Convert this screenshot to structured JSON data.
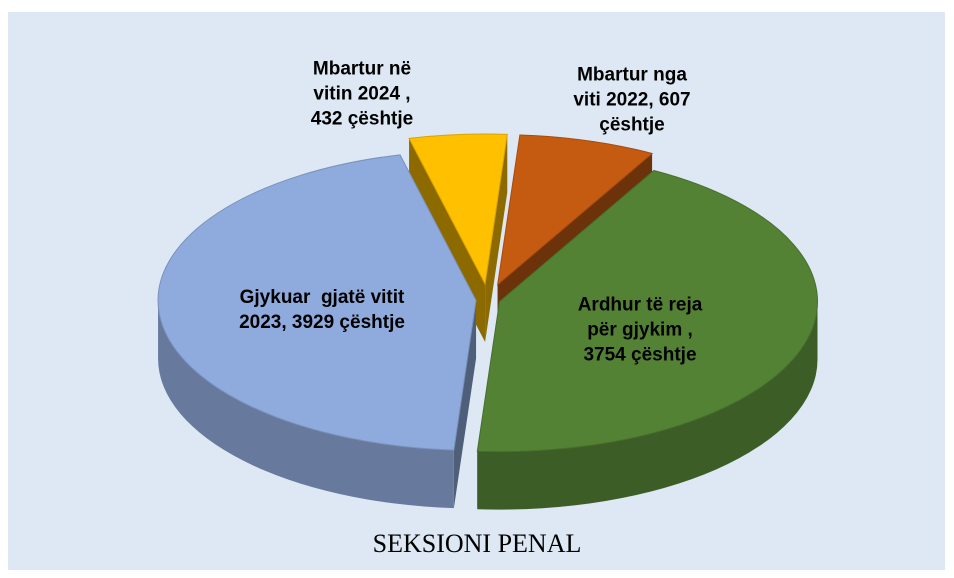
{
  "chart_data": {
    "type": "pie",
    "title": "SEKSIONI PENAL",
    "categories": [
      "Mbartur nga viti 2022,",
      "Ardhur të reja për gjykim ,",
      "Gjykuar  gjatë vitit 2023,",
      "Mbartur në vitin 2024 ,"
    ],
    "values": [
      607,
      3754,
      3929,
      432
    ],
    "value_labels": [
      "607 çështje",
      "3754 çështje",
      "3929 çështje",
      "432 çështje"
    ],
    "colors": [
      "#c55a11",
      "#548235",
      "#8faadc",
      "#ffc000"
    ]
  }
}
